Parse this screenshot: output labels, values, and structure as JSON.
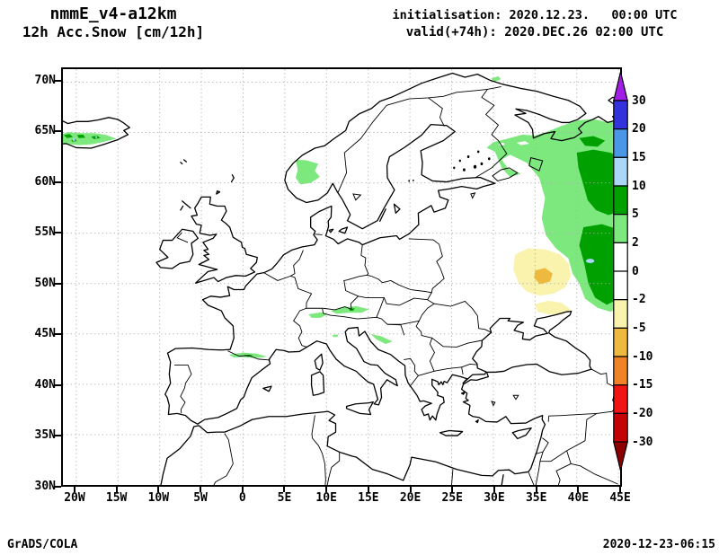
{
  "header": {
    "model": "nmmE_v4-a12km",
    "product": "12h Acc.Snow [cm/12h]",
    "init_label": "initialisation: 2020.12.23.   00:00 UTC",
    "valid_label": "valid(+74h): 2020.DEC.26 02:00 UTC"
  },
  "footer": {
    "credit": "GrADS/COLA",
    "timestamp": "2020-12-23-06:15"
  },
  "axes": {
    "lat_ticks": [
      {
        "label": "70N",
        "deg": 70
      },
      {
        "label": "65N",
        "deg": 65
      },
      {
        "label": "60N",
        "deg": 60
      },
      {
        "label": "55N",
        "deg": 55
      },
      {
        "label": "50N",
        "deg": 50
      },
      {
        "label": "45N",
        "deg": 45
      },
      {
        "label": "40N",
        "deg": 40
      },
      {
        "label": "35N",
        "deg": 35
      },
      {
        "label": "30N",
        "deg": 30
      }
    ],
    "lon_ticks": [
      {
        "label": "20W",
        "deg": -20
      },
      {
        "label": "15W",
        "deg": -15
      },
      {
        "label": "10W",
        "deg": -10
      },
      {
        "label": "5W",
        "deg": -5
      },
      {
        "label": "0",
        "deg": 0
      },
      {
        "label": "5E",
        "deg": 5
      },
      {
        "label": "10E",
        "deg": 10
      },
      {
        "label": "15E",
        "deg": 15
      },
      {
        "label": "20E",
        "deg": 20
      },
      {
        "label": "25E",
        "deg": 25
      },
      {
        "label": "30E",
        "deg": 30
      },
      {
        "label": "35E",
        "deg": 35
      },
      {
        "label": "40E",
        "deg": 40
      },
      {
        "label": "45E",
        "deg": 45
      }
    ]
  },
  "palette": {
    "purple": "#a01ee6",
    "blue": "#3333dc",
    "mid_blue": "#4a97e8",
    "light_blue": "#aad6f7",
    "dark_green": "#00a000",
    "light_green": "#7de87d",
    "white": "#ffffff",
    "pale_yellow": "#f9f3ae",
    "gold": "#edb93e",
    "orange": "#f08228",
    "red": "#f01414",
    "dark_red": "#c40404",
    "maroon": "#8e0000"
  },
  "colorbar": {
    "levels": [
      "30",
      "20",
      "15",
      "10",
      "5",
      "2",
      "0",
      "-2",
      "-5",
      "-10",
      "-15",
      "-20",
      "-30"
    ],
    "segment_colors": [
      "blue",
      "mid_blue",
      "light_blue",
      "dark_green",
      "light_green",
      "white",
      "white",
      "pale_yellow",
      "gold",
      "orange",
      "red",
      "dark_red"
    ],
    "arrow_top_color": "purple",
    "arrow_bottom_color": "maroon"
  },
  "snow_regions": [
    {
      "area": "Iceland (south)",
      "level": "2-5 cm with 5-10 cm cores and spots >10 cm"
    },
    {
      "area": "Southern Norway mountains",
      "level": "2-5 cm"
    },
    {
      "area": "NW Russia / Karelia / White Sea region",
      "level": "2-5 cm widespread, 5-10 cm cores near 40-45E, small spot 10-15 cm"
    },
    {
      "area": "Western Russia near 33-39E 49-53N",
      "level": "-2 to -5 cm, core -5 to -10 cm"
    },
    {
      "area": "North of Sea of Azov",
      "level": "-2 to -5 cm"
    },
    {
      "area": "Alps (Switzerland / Austria)",
      "level": "2-5 cm streaks"
    },
    {
      "area": "Pyrenees",
      "level": "2-5 cm streak with 5-10 cm core"
    },
    {
      "area": "Dinaric Alps",
      "level": "2-5 cm"
    }
  ]
}
